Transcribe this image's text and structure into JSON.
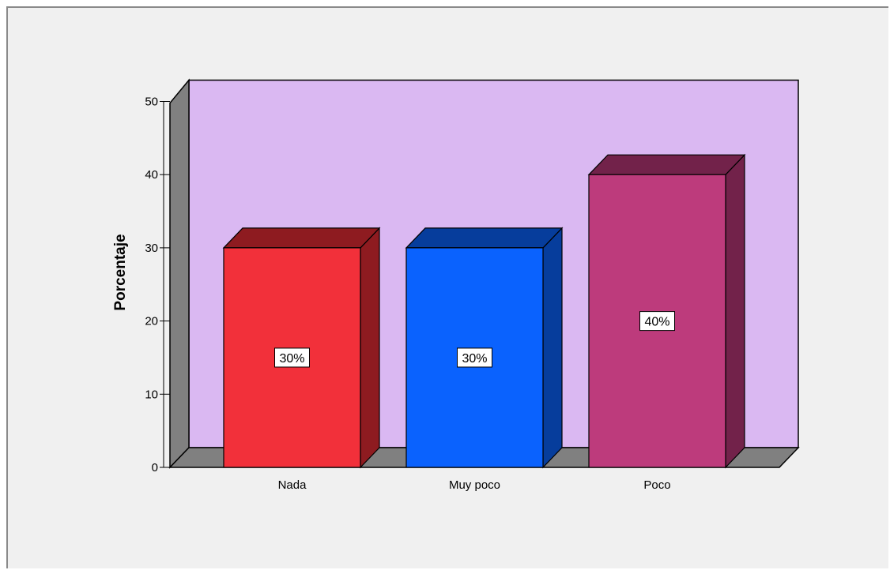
{
  "chart_data": {
    "type": "bar",
    "style": "3d",
    "title": "",
    "xlabel": "",
    "ylabel": "Porcentaje",
    "ylim": [
      0,
      50
    ],
    "yticks": [
      "0",
      "10",
      "20",
      "30",
      "40",
      "50"
    ],
    "grid": false,
    "legend": "none",
    "categories": [
      "Nada",
      "Muy poco",
      "Poco"
    ],
    "values": [
      30,
      30,
      40
    ],
    "data_labels": [
      "30%",
      "30%",
      "40%"
    ],
    "colors": {
      "background": "#f0f0f0",
      "back_wall": "#dab8f2",
      "side_wall": "#808080",
      "floor": "#808080",
      "bars": [
        "#f2303a",
        "#0a62fe",
        "#bd3b7c"
      ],
      "bar_sides": [
        "#8e1b20",
        "#063d9c",
        "#72224a"
      ]
    }
  }
}
